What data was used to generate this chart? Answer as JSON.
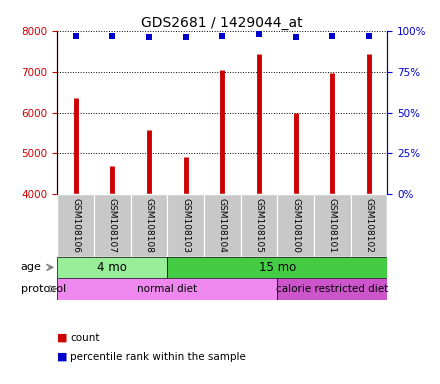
{
  "title": "GDS2681 / 1429044_at",
  "samples": [
    "GSM108106",
    "GSM108107",
    "GSM108108",
    "GSM108103",
    "GSM108104",
    "GSM108105",
    "GSM108100",
    "GSM108101",
    "GSM108102"
  ],
  "counts": [
    6350,
    4700,
    5580,
    4920,
    7050,
    7420,
    6000,
    6960,
    7420
  ],
  "percentile_ranks": [
    97,
    97,
    96,
    96,
    97,
    98,
    96,
    97,
    97
  ],
  "ylim_left": [
    4000,
    8000
  ],
  "ylim_right": [
    0,
    100
  ],
  "yticks_left": [
    4000,
    5000,
    6000,
    7000,
    8000
  ],
  "yticks_right": [
    0,
    25,
    50,
    75,
    100
  ],
  "bar_color": "#cc0000",
  "dot_color": "#0000cc",
  "title_fontsize": 10,
  "age_groups": [
    {
      "label": "4 mo",
      "start": 0,
      "end": 3,
      "color": "#99ee99"
    },
    {
      "label": "15 mo",
      "start": 3,
      "end": 9,
      "color": "#44cc44"
    }
  ],
  "protocol_groups": [
    {
      "label": "normal diet",
      "start": 0,
      "end": 6,
      "color": "#ee88ee"
    },
    {
      "label": "calorie restricted diet",
      "start": 6,
      "end": 9,
      "color": "#cc55cc"
    }
  ],
  "tick_area_color": "#c8c8c8",
  "left_axis_color": "#cc0000",
  "right_axis_color": "#0000cc"
}
